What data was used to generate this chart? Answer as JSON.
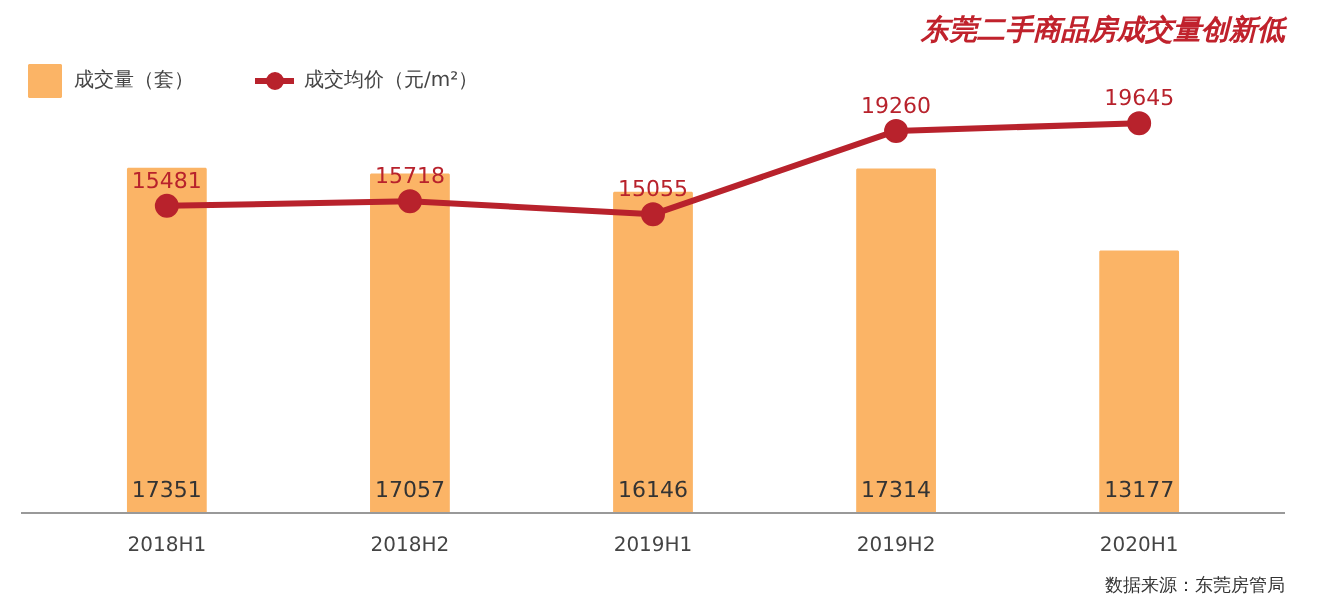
{
  "chart_data": {
    "type": "bar",
    "title": "东莞二手商品房成交量创新低",
    "categories": [
      "2018H1",
      "2018H2",
      "2019H1",
      "2019H2",
      "2020H1"
    ],
    "series": [
      {
        "name": "成交量（套）",
        "color": "#fbb466",
        "values": [
          17351,
          17057,
          16146,
          17314,
          13177
        ]
      },
      {
        "name": "成交均价（元/m²）",
        "type": "line",
        "color": "#b8222c",
        "marker": "circle",
        "values": [
          15481,
          15718,
          15055,
          19260,
          19645
        ]
      }
    ],
    "data_labels": true,
    "legend": "top left",
    "grid": false,
    "tick_labels": "x",
    "annotations": [
      "数据来源：东莞房管局"
    ]
  }
}
